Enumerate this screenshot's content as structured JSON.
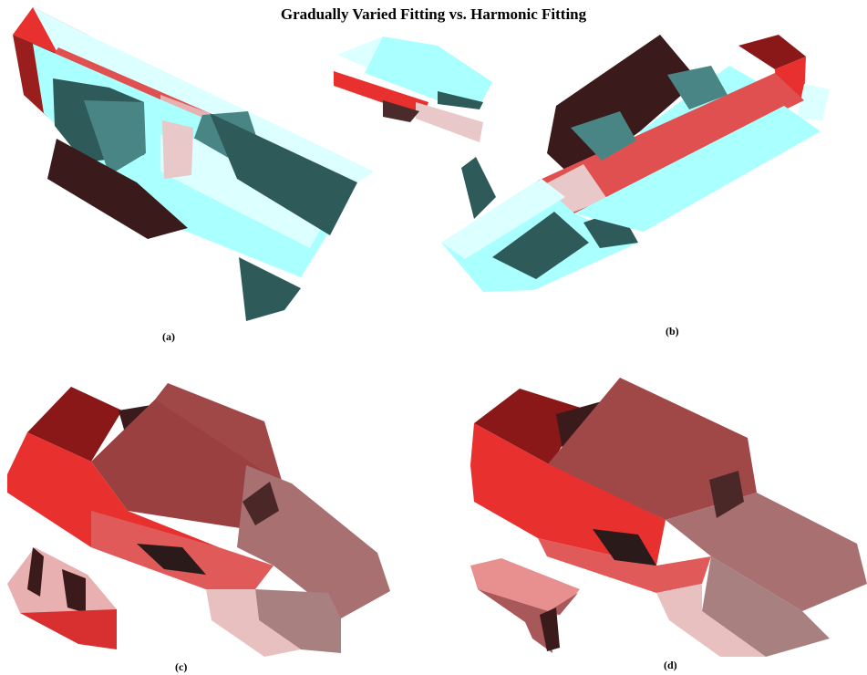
{
  "title": "Gradually Varied Fitting vs. Harmonic Fitting",
  "panels": [
    {
      "label": "(a)",
      "render": "cyan-red surface"
    },
    {
      "label": "(b)",
      "render": "cyan-red surface"
    },
    {
      "label": "(c)",
      "render": "red shaded surface"
    },
    {
      "label": "(d)",
      "render": "red shaded surface"
    }
  ],
  "colors": {
    "cyan_light": "#aaffff",
    "cyan_pale": "#dcffff",
    "teal_dark": "#2f5a5a",
    "teal_mid": "#4a8585",
    "red_bright": "#e8302f",
    "red_mid": "#d85050",
    "red_dark": "#3a1a1a",
    "pink_light": "#e8b0b0",
    "mauve": "#a87070",
    "brown_red": "#8a3535"
  }
}
